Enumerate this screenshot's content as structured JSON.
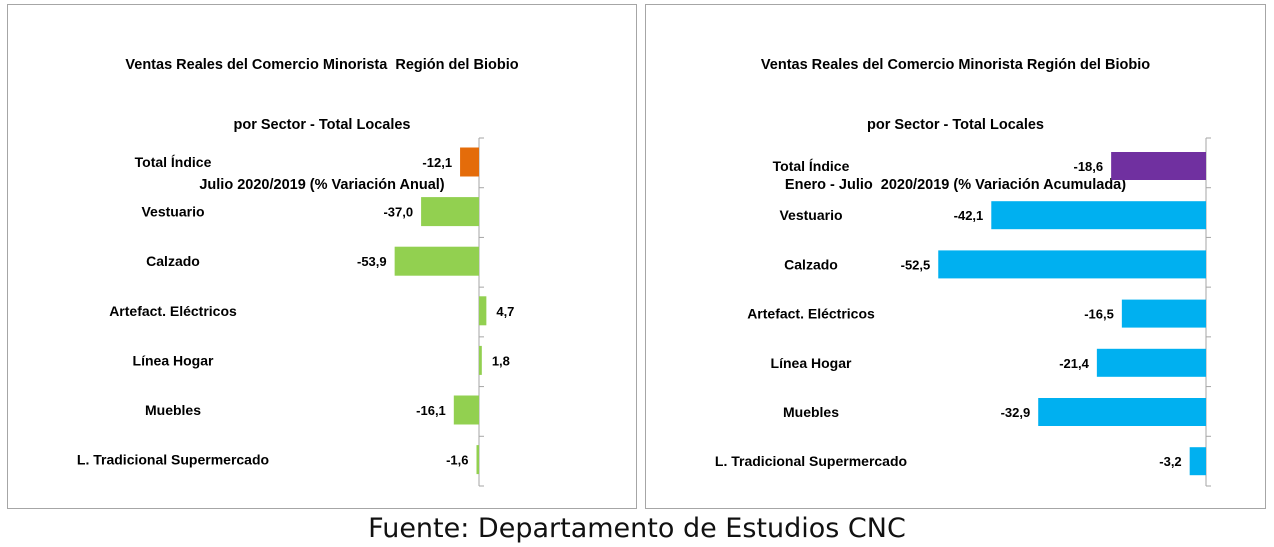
{
  "chart_data": [
    {
      "type": "bar",
      "orientation": "horizontal",
      "title_lines": [
        "Ventas Reales del Comercio Minorista  Región del Biobio",
        "por Sector - Total Locales",
        "Julio 2020/2019 (% Variación Anual)"
      ],
      "categories": [
        "Total Índice",
        "Vestuario",
        "Calzado",
        "Artefact. Eléctricos",
        "Línea Hogar",
        "Muebles",
        "L. Tradicional Supermercado"
      ],
      "values": [
        -12.1,
        -37.0,
        -53.9,
        4.7,
        1.8,
        -16.1,
        -1.6
      ],
      "value_labels": [
        "-12,1",
        "-37,0",
        "-53,9",
        "4,7",
        "1,8",
        "-16,1",
        "-1,6"
      ],
      "bar_colors": [
        "#e46c0a",
        "#92d050",
        "#92d050",
        "#92d050",
        "#92d050",
        "#92d050",
        "#92d050"
      ],
      "xlim": [
        -60,
        10
      ],
      "xlabel": "",
      "ylabel": "",
      "grid": false,
      "legend": false
    },
    {
      "type": "bar",
      "orientation": "horizontal",
      "title_lines": [
        "Ventas Reales del Comercio Minorista Región del Biobio",
        "por Sector - Total Locales",
        "Enero - Julio  2020/2019 (% Variación Acumulada)"
      ],
      "categories": [
        "Total Índice",
        "Vestuario",
        "Calzado",
        "Artefact. Eléctricos",
        "Línea Hogar",
        "Muebles",
        "L. Tradicional Supermercado"
      ],
      "values": [
        -18.6,
        -42.1,
        -52.5,
        -16.5,
        -21.4,
        -32.9,
        -3.2
      ],
      "value_labels": [
        "-18,6",
        "-42,1",
        "-52,5",
        "-16,5",
        "-21,4",
        "-32,9",
        "-3,2"
      ],
      "bar_colors": [
        "#7030a0",
        "#00b0f0",
        "#00b0f0",
        "#00b0f0",
        "#00b0f0",
        "#00b0f0",
        "#00b0f0"
      ],
      "xlim": [
        -60,
        0
      ],
      "xlabel": "",
      "ylabel": "",
      "grid": false,
      "legend": false
    }
  ],
  "source_note": "Fuente: Departamento de Estudios CNC"
}
